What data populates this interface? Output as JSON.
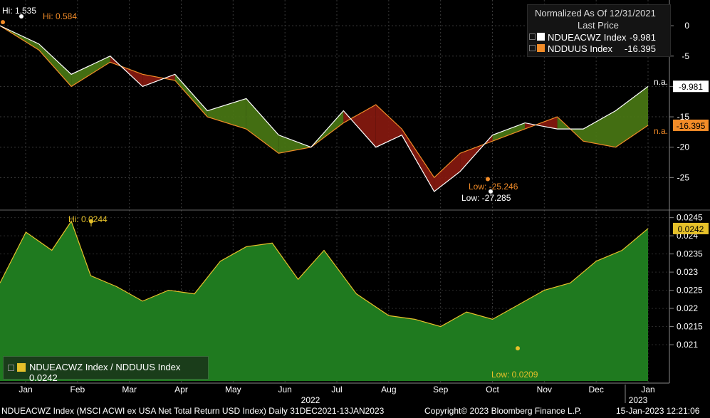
{
  "chart_data": [
    {
      "type": "line",
      "panel": "top",
      "title": "Normalized As Of 12/31/2021",
      "subtitle": "Last Price",
      "ylim": [
        -30,
        4
      ],
      "y_ticks": [
        0,
        -5,
        -10,
        -15,
        -20,
        -25
      ],
      "y_tick_labels": [
        "0",
        "-5",
        "-10",
        "-15",
        "-20",
        "-25"
      ],
      "series": [
        {
          "name": "NDUEACWZ Index",
          "last_value": "-9.981",
          "color": "#ffffff",
          "x": [
            0,
            0.06,
            0.11,
            0.17,
            0.22,
            0.27,
            0.32,
            0.38,
            0.43,
            0.48,
            0.53,
            0.58,
            0.62,
            0.67,
            0.71,
            0.76,
            0.81,
            0.86,
            0.9,
            0.95,
            1.0
          ],
          "values": [
            0,
            -3,
            -8,
            -5,
            -10,
            -8,
            -14,
            -12,
            -18,
            -20,
            -14,
            -20,
            -18,
            -27.3,
            -24,
            -18,
            -16,
            -17,
            -17,
            -14,
            -10
          ]
        },
        {
          "name": "NDDUUS Index",
          "last_value": "-16.395",
          "color": "#f28c28",
          "x": [
            0,
            0.06,
            0.11,
            0.17,
            0.22,
            0.27,
            0.32,
            0.38,
            0.43,
            0.48,
            0.53,
            0.58,
            0.62,
            0.67,
            0.71,
            0.76,
            0.81,
            0.86,
            0.9,
            0.95,
            1.0
          ],
          "values": [
            0,
            -4,
            -10,
            -6,
            -8,
            -9,
            -15,
            -17,
            -21,
            -20,
            -16,
            -13,
            -17,
            -25,
            -21,
            -19,
            -17,
            -15,
            -19,
            -20,
            -16.4
          ]
        }
      ],
      "annotations": [
        {
          "text": "Hi: 1.535",
          "color": "#ffffff"
        },
        {
          "text": "Hi: 0.584",
          "color": "#f28c28"
        },
        {
          "text": "Low: -25.246",
          "color": "#f28c28"
        },
        {
          "text": "Low: -27.285",
          "color": "#ffffff"
        },
        {
          "text": "n.a.",
          "color": "#ffffff"
        },
        {
          "text": "n.a.",
          "color": "#f28c28"
        }
      ],
      "fill_colors": {
        "white_above": "#4a7a14",
        "orange_above": "#8a1a10"
      }
    },
    {
      "type": "area",
      "panel": "bottom",
      "ylim": [
        0.02,
        0.02465
      ],
      "y_ticks": [
        0.021,
        0.0215,
        0.022,
        0.0225,
        0.023,
        0.0235,
        0.024,
        0.0245
      ],
      "y_tick_labels": [
        "0.021",
        "0.0215",
        "0.022",
        "0.0225",
        "0.023",
        "0.0235",
        "0.024",
        "0.0245"
      ],
      "series": [
        {
          "name": "NDUEACWZ Index / NDDUUS Index",
          "last_value": "0.0242",
          "color": "#e6c12a",
          "fill": "#1f7a1f",
          "x": [
            0,
            0.04,
            0.08,
            0.11,
            0.14,
            0.18,
            0.22,
            0.26,
            0.3,
            0.34,
            0.38,
            0.42,
            0.46,
            0.5,
            0.55,
            0.6,
            0.64,
            0.68,
            0.72,
            0.76,
            0.8,
            0.84,
            0.88,
            0.92,
            0.96,
            1.0
          ],
          "values": [
            0.0227,
            0.0241,
            0.0236,
            0.0244,
            0.0229,
            0.0226,
            0.0222,
            0.0225,
            0.0224,
            0.0233,
            0.0237,
            0.0238,
            0.0228,
            0.0236,
            0.0224,
            0.0218,
            0.0217,
            0.0215,
            0.0219,
            0.0217,
            0.0221,
            0.0225,
            0.0227,
            0.0233,
            0.0236,
            0.0242
          ]
        }
      ],
      "annotations": [
        {
          "text": "Hi: 0.0244",
          "color": "#e6c12a"
        },
        {
          "text": "Low: 0.0209",
          "color": "#e6c12a"
        }
      ]
    }
  ],
  "x_axis": {
    "months": [
      "Jan",
      "Feb",
      "Mar",
      "Apr",
      "May",
      "Jun",
      "Jul",
      "Aug",
      "Sep",
      "Oct",
      "Nov",
      "Dec",
      "Jan"
    ],
    "year_labels": [
      "2022",
      "2023"
    ]
  },
  "legend": {
    "title": "Normalized As Of 12/31/2021",
    "subtitle": "Last Price",
    "items": [
      {
        "name": "NDUEACWZ Index",
        "value": "-9.981",
        "color": "#ffffff"
      },
      {
        "name": "NDDUUS Index",
        "value": "-16.395",
        "color": "#f28c28"
      }
    ]
  },
  "bottom_legend": {
    "label": "NDUEACWZ Index / NDDUUS Index 0.0242",
    "color": "#e6c12a"
  },
  "footer": {
    "description": "NDUEACWZ Index (MSCI ACWI ex USA Net Total Return USD Index)  Daily 31DEC2021-13JAN2023",
    "copyright": "Copyright© 2023 Bloomberg Finance L.P.",
    "timestamp": "15-Jan-2023 12:21:06"
  }
}
